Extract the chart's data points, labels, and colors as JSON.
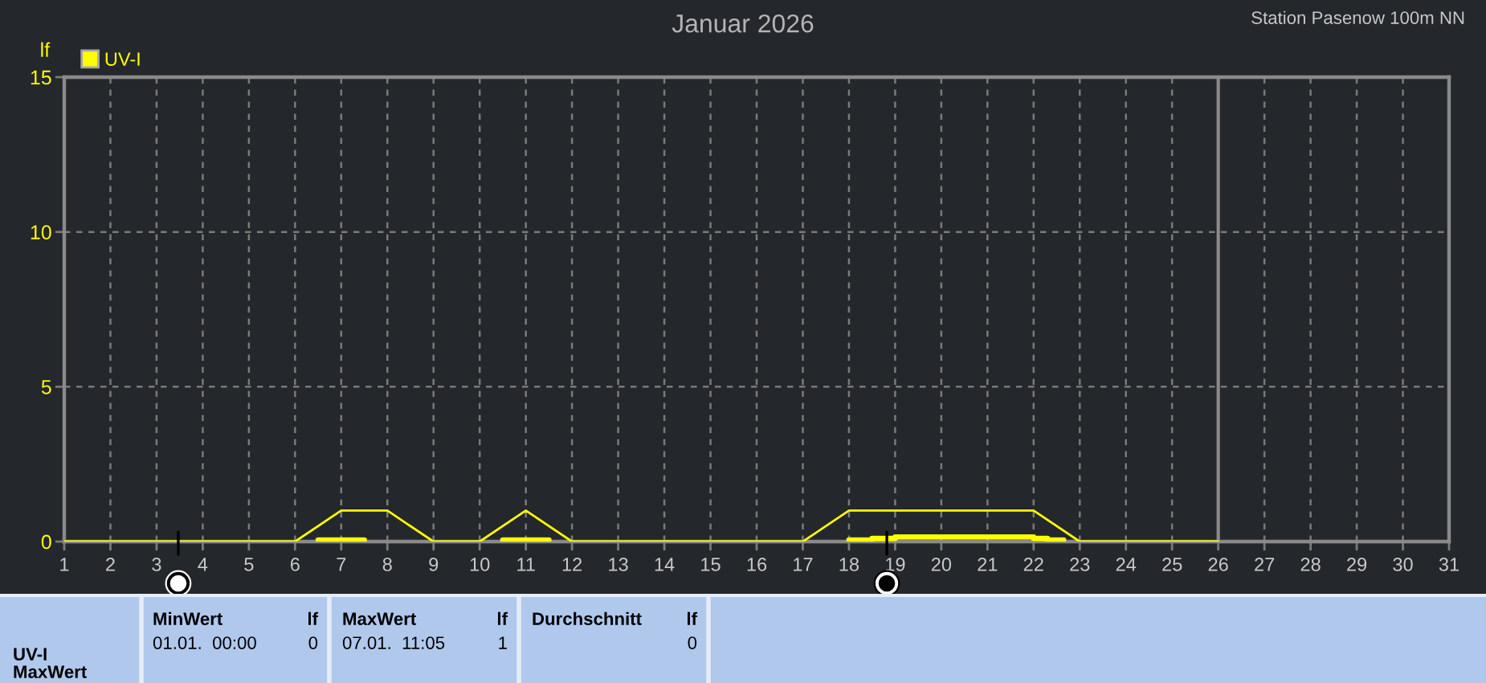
{
  "chart_data": {
    "type": "line",
    "title": "Januar 2026",
    "subtitle": "Station Pasenow 100m NN",
    "ylabel": "lf",
    "xlim": [
      1,
      31
    ],
    "xticks": [
      1,
      2,
      3,
      4,
      5,
      6,
      7,
      8,
      9,
      10,
      11,
      12,
      13,
      14,
      15,
      16,
      17,
      18,
      19,
      20,
      21,
      22,
      23,
      24,
      25,
      26,
      27,
      28,
      29,
      30,
      31
    ],
    "ylim": [
      0,
      15
    ],
    "yticks": [
      0,
      5,
      10,
      15
    ],
    "grid": true,
    "legend": "top left",
    "series": [
      {
        "name": "UV-I",
        "color": "#ffff00",
        "x": [
          1,
          2,
          3,
          4,
          5,
          6,
          7,
          8,
          9,
          10,
          11,
          12,
          13,
          14,
          15,
          16,
          17,
          18,
          19,
          20,
          21,
          22,
          23,
          24,
          25,
          26
        ],
        "values": [
          0,
          0,
          0,
          0,
          0,
          0,
          1,
          1,
          0,
          0,
          1,
          0,
          0,
          0,
          0,
          0,
          0,
          1,
          1,
          1,
          1,
          1,
          0,
          0,
          0,
          0
        ]
      },
      {
        "type": "step",
        "color": "#ffff00",
        "x": [
          6.5,
          7.5,
          10.5,
          11.5,
          18,
          18.5,
          19,
          22,
          22.3,
          22.65
        ],
        "values": [
          0.05,
          null,
          0.05,
          null,
          0.05,
          0.1,
          0.15,
          0.1,
          0.05,
          0.05
        ]
      }
    ],
    "ref_lines": [
      {
        "axis": "x",
        "value": 26,
        "color": "#8a8a8a"
      }
    ],
    "annotations": [
      "UV-I",
      "MaxWert",
      "MinWert",
      "lf",
      "01.01.  00:00",
      "0",
      "MaxWert",
      "lf",
      "07.01.  11:05",
      "1",
      "Durchschnitt",
      "lf",
      "0"
    ]
  }
}
